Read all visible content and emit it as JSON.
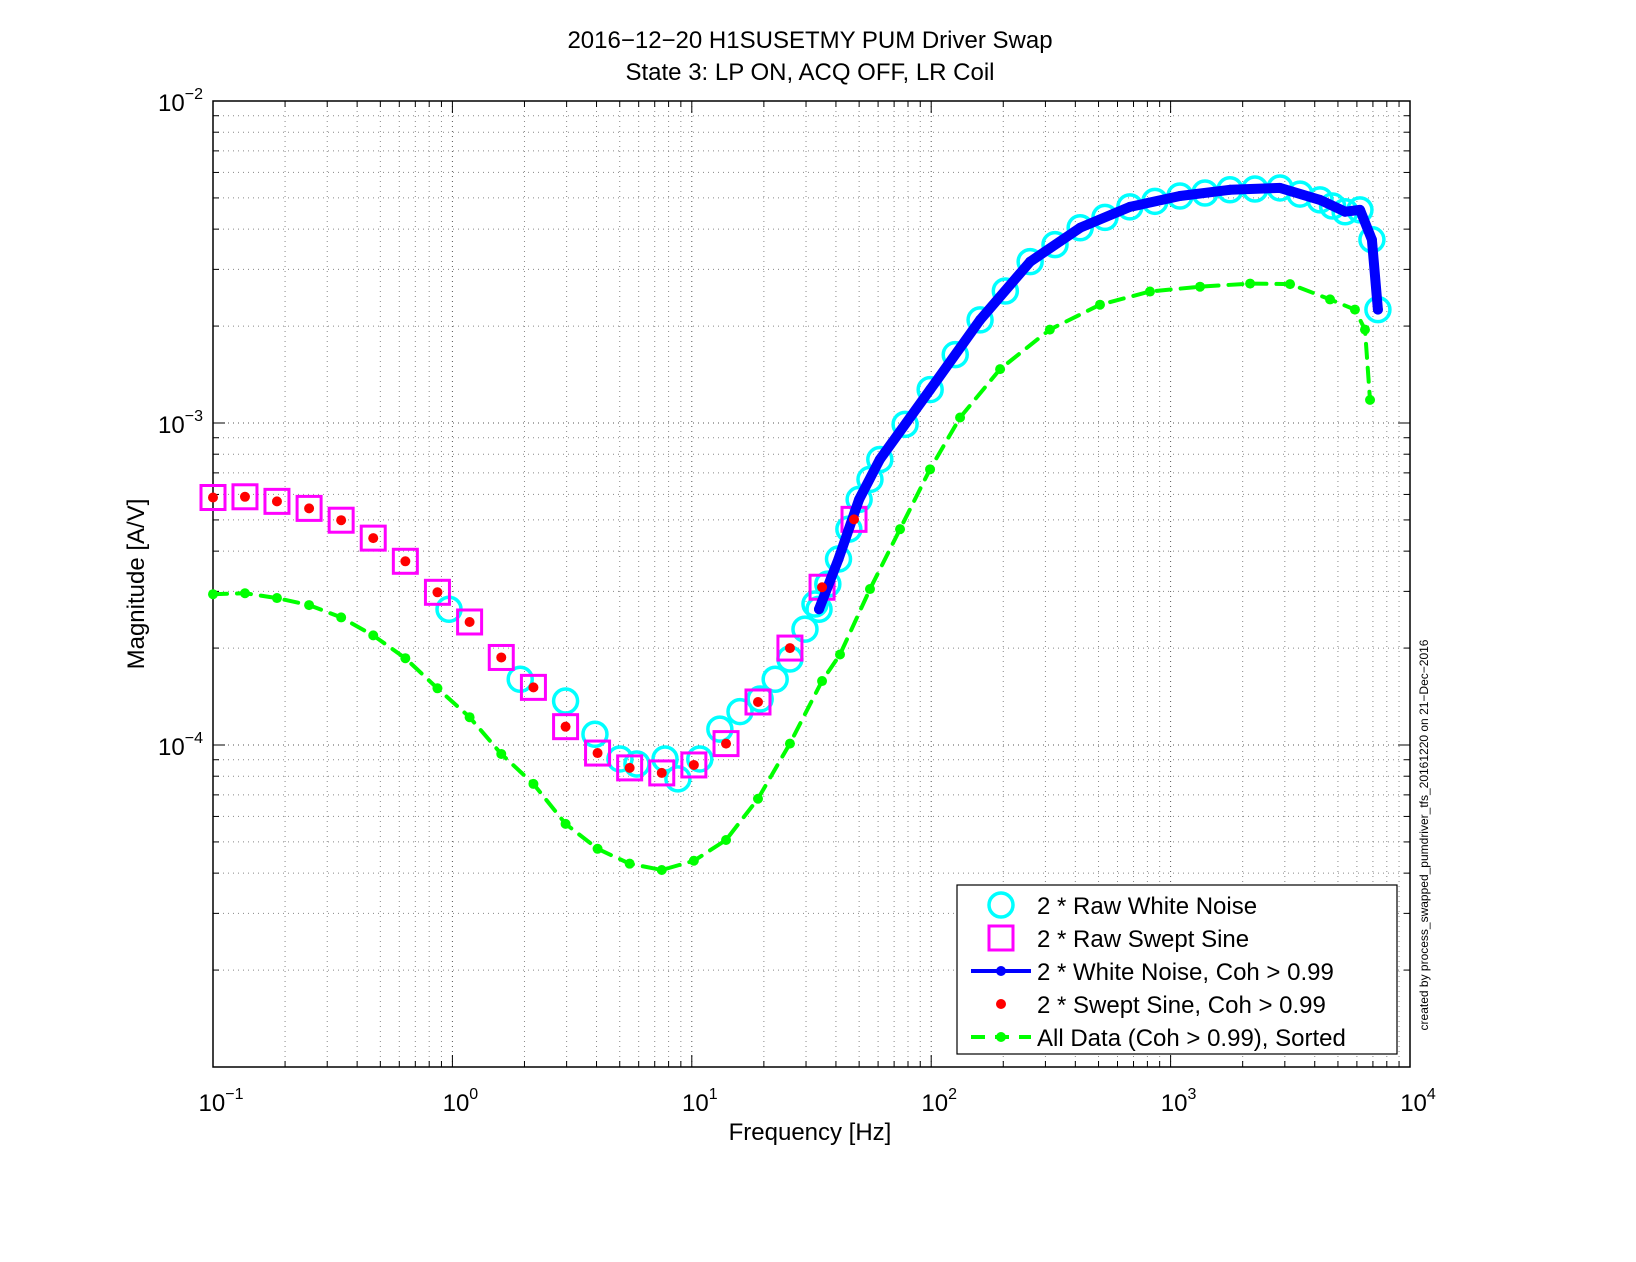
{
  "chart_data": {
    "type": "line",
    "title": "2016−12−20 H1SUSETMY PUM Driver Swap",
    "subtitle": "State 3: LP ON, ACQ OFF, LR Coil",
    "x_label": "Frequency [Hz]",
    "y_label": "Magnitude [A/V]",
    "annotation": "created by process_swapped_pumdriver_tfs_20161220 on 21−Dec−2016",
    "xscale": "log",
    "yscale": "log",
    "grid": true,
    "minor_grid": true,
    "legend": "lower right",
    "xlim": [
      0.1,
      10000
    ],
    "ylim": [
      1e-05,
      0.01
    ],
    "xticks": [
      {
        "value": 0.1,
        "label": "10",
        "exponent": "−1"
      },
      {
        "value": 1,
        "label": "10",
        "exponent": "0"
      },
      {
        "value": 10,
        "label": "10",
        "exponent": "1"
      },
      {
        "value": 100,
        "label": "10",
        "exponent": "2"
      },
      {
        "value": 1000,
        "label": "10",
        "exponent": "3"
      },
      {
        "value": 10000,
        "label": "10",
        "exponent": "4"
      }
    ],
    "yticks": [
      {
        "value": 0.0001,
        "label": "10",
        "exponent": "−4"
      },
      {
        "value": 0.001,
        "label": "10",
        "exponent": "−3"
      },
      {
        "value": 0.01,
        "label": "10",
        "exponent": "−2"
      }
    ],
    "series": [
      {
        "name": "2 * Raw White Noise",
        "color": "#00ffff",
        "marker": "circle",
        "line": "none",
        "x": [
          0.968,
          1.92,
          2.97,
          3.94,
          5.01,
          5.9,
          7.73,
          8.75,
          10.8,
          13.1,
          15.9,
          19.3,
          22.3,
          25.7,
          29.7,
          32.7,
          34,
          37,
          41,
          45.3,
          50,
          55.5,
          61,
          77.8,
          99,
          126,
          160,
          204,
          259,
          329,
          419,
          532,
          676,
          860,
          1094,
          1392,
          1770,
          2251,
          2864,
          3471,
          4207,
          4748,
          5358,
          6180,
          6934,
          7345
        ],
        "values": [
          0.000264,
          0.00016,
          0.000137,
          0.000108,
          9.05e-05,
          8.73e-05,
          9.05e-05,
          7.85e-05,
          9.05e-05,
          0.000112,
          0.000127,
          0.000139,
          0.00016,
          0.000185,
          0.000229,
          0.000274,
          0.000264,
          0.000316,
          0.000378,
          0.000468,
          0.000579,
          0.000668,
          0.00077,
          0.00099,
          0.00127,
          0.00163,
          0.00209,
          0.00257,
          0.00317,
          0.00358,
          0.00404,
          0.00435,
          0.00469,
          0.00488,
          0.00507,
          0.00518,
          0.0053,
          0.00533,
          0.00537,
          0.00514,
          0.00493,
          0.00472,
          0.00453,
          0.00459,
          0.00371,
          0.00225
        ]
      },
      {
        "name": "2 * Raw Swept Sine",
        "color": "#ff00ff",
        "marker": "square",
        "line": "none",
        "x": [
          0.1,
          0.136,
          0.185,
          0.252,
          0.343,
          0.467,
          0.636,
          0.866,
          1.18,
          1.6,
          2.18,
          2.97,
          4.04,
          5.5,
          7.49,
          10.2,
          13.9,
          18.9,
          25.7,
          35,
          47.6
        ],
        "values": [
          0.000587,
          0.00059,
          0.000571,
          0.000543,
          0.000499,
          0.000439,
          0.000372,
          0.000298,
          0.000241,
          0.000187,
          0.000151,
          0.000114,
          9.44e-05,
          8.49e-05,
          8.19e-05,
          8.67e-05,
          0.000101,
          0.000136,
          0.0002,
          0.000309,
          0.000502
        ]
      },
      {
        "name": "2 * White Noise, Coh > 0.99",
        "color": "#0000ff",
        "marker": "dot",
        "line": "solid",
        "x": [
          34,
          41,
          50,
          61,
          99,
          160,
          259,
          419,
          676,
          1094,
          1770,
          2864,
          4207,
          5358,
          6180,
          6934,
          7345
        ],
        "values": [
          0.000264,
          0.000378,
          0.000579,
          0.00077,
          0.00127,
          0.00209,
          0.00317,
          0.00404,
          0.00469,
          0.00507,
          0.0053,
          0.00537,
          0.00493,
          0.00453,
          0.00459,
          0.00371,
          0.00225
        ]
      },
      {
        "name": "2 * Swept Sine, Coh > 0.99",
        "color": "#ff0000",
        "marker": "dot",
        "line": "none",
        "x": [
          0.1,
          0.136,
          0.185,
          0.252,
          0.343,
          0.467,
          0.636,
          0.866,
          1.18,
          1.6,
          2.18,
          2.97,
          4.04,
          5.5,
          7.49,
          10.2,
          13.9,
          18.9,
          25.7,
          35,
          47.6
        ],
        "values": [
          0.000587,
          0.00059,
          0.000571,
          0.000543,
          0.000499,
          0.000439,
          0.000372,
          0.000298,
          0.000241,
          0.000187,
          0.000151,
          0.000114,
          9.44e-05,
          8.49e-05,
          8.19e-05,
          8.67e-05,
          0.000101,
          0.000136,
          0.0002,
          0.000309,
          0.000502
        ]
      },
      {
        "name": "All Data (Coh > 0.99), Sorted",
        "color": "#00ff00",
        "marker": "dot",
        "line": "dashed",
        "x": [
          0.1,
          0.136,
          0.185,
          0.252,
          0.343,
          0.467,
          0.636,
          0.866,
          1.18,
          1.6,
          2.18,
          2.97,
          4.04,
          5.5,
          7.49,
          10.2,
          13.9,
          18.9,
          25.7,
          35,
          41.6,
          55.5,
          74.1,
          98.9,
          132,
          194,
          313,
          507,
          820,
          1327,
          2148,
          3155,
          4634,
          5888,
          6486,
          6808
        ],
        "values": [
          0.000294,
          0.000296,
          0.000286,
          0.000272,
          0.000249,
          0.000219,
          0.000186,
          0.00015,
          0.000122,
          9.38e-05,
          7.57e-05,
          5.69e-05,
          4.76e-05,
          4.28e-05,
          4.09e-05,
          4.37e-05,
          5.07e-05,
          6.81e-05,
          0.000101,
          0.000158,
          0.000191,
          0.000305,
          0.000468,
          0.000718,
          0.00104,
          0.00147,
          0.00195,
          0.00233,
          0.00256,
          0.00265,
          0.00271,
          0.0027,
          0.00242,
          0.00225,
          0.00195,
          0.00118
        ]
      }
    ]
  }
}
